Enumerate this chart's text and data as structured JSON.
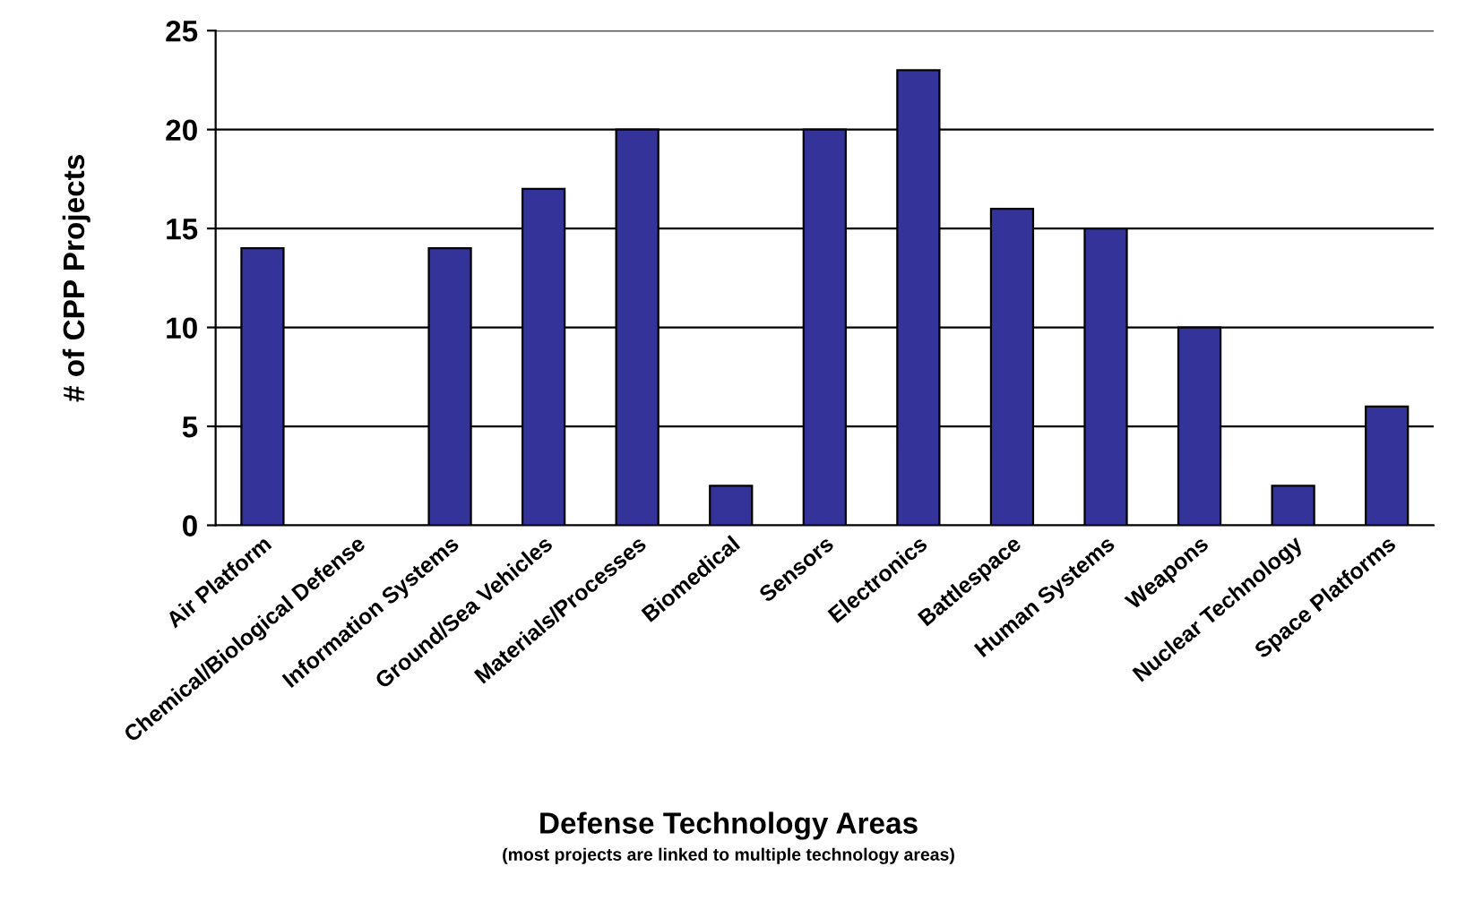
{
  "chart_data": {
    "type": "bar",
    "categories": [
      "Air Platform",
      "Chemical/Biological Defense",
      "Information Systems",
      "Ground/Sea Vehicles",
      "Materials/Processes",
      "Biomedical",
      "Sensors",
      "Electronics",
      "Battlespace",
      "Human Systems",
      "Weapons",
      "Nuclear Technology",
      "Space Platforms"
    ],
    "values": [
      14,
      0,
      14,
      17,
      20,
      2,
      20,
      23,
      16,
      15,
      10,
      2,
      6
    ],
    "color": "#333399",
    "ylim": [
      0,
      25
    ],
    "yticks": [
      0,
      5,
      10,
      15,
      20,
      25
    ],
    "grid": "y",
    "xlabel": "Defense Technology Areas",
    "ylabel": "# of CPP Projects",
    "annotations": [
      "(most projects are linked to multiple technology areas)"
    ]
  }
}
